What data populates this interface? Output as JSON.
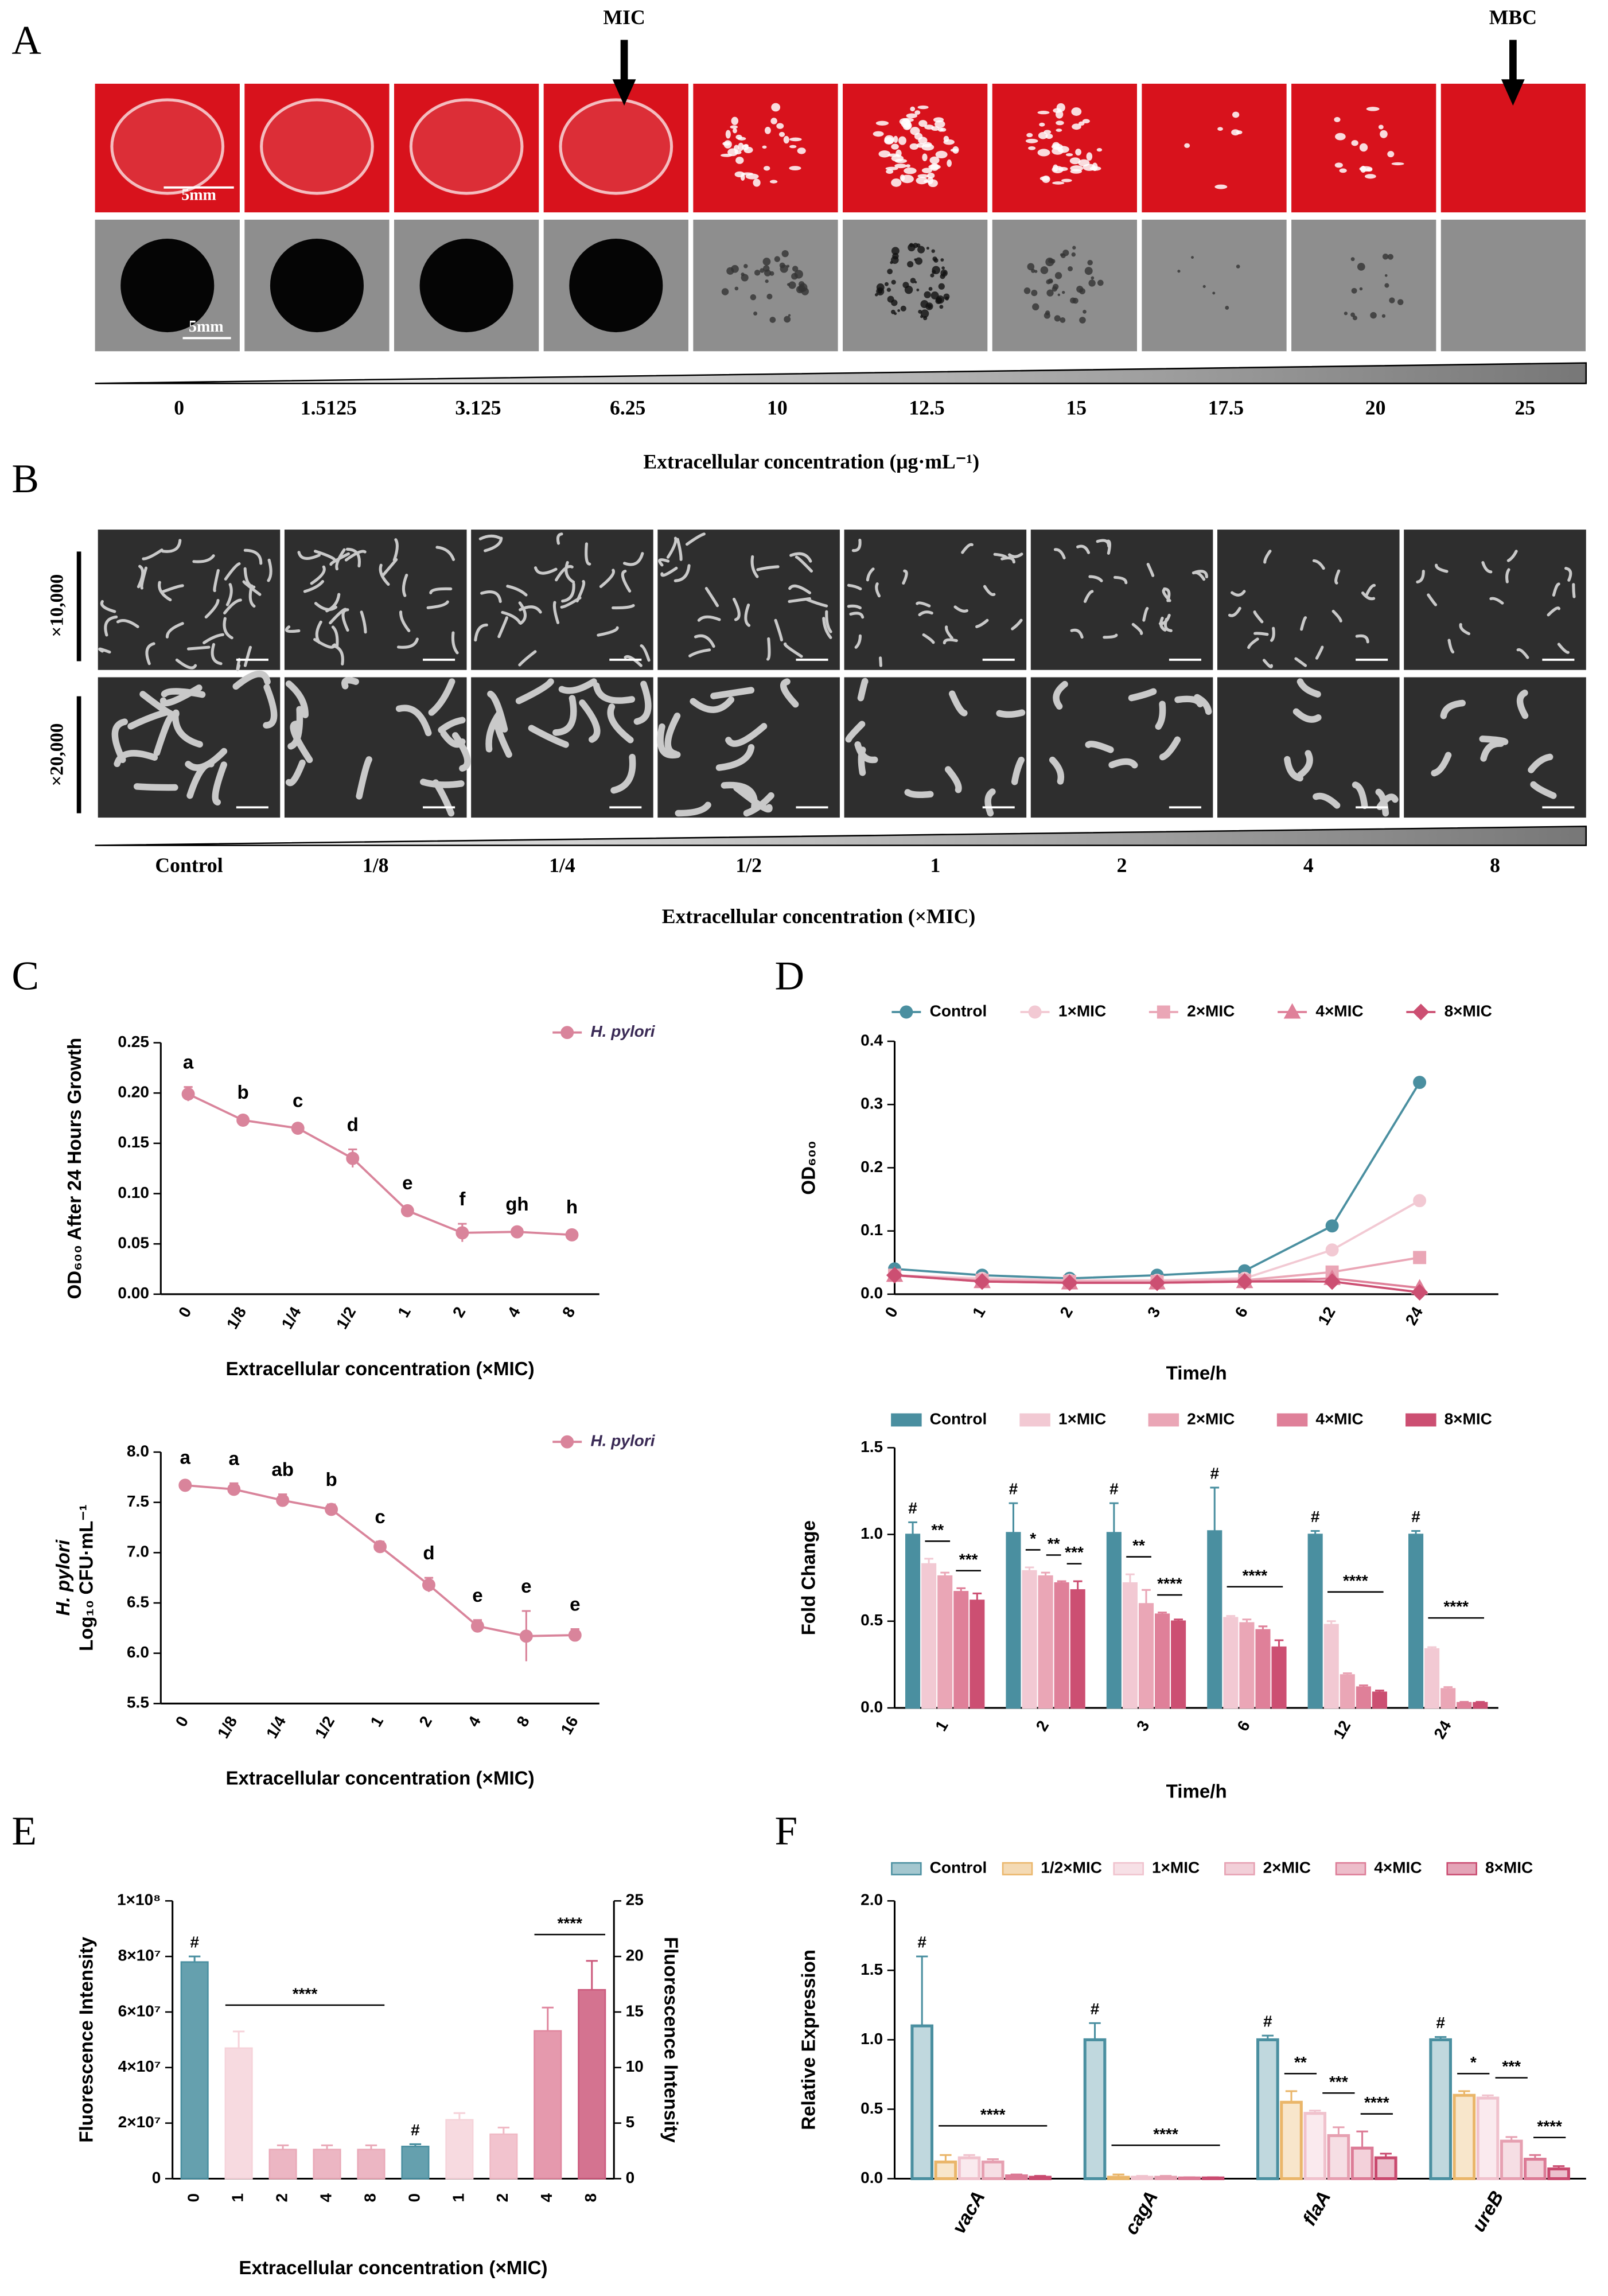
{
  "panel_A": {
    "label": "A",
    "mic": "MIC",
    "mbc": "MBC",
    "scale": "5mm",
    "concentrations": [
      "0",
      "1.5125",
      "3.125",
      "6.25",
      "10",
      "12.5",
      "15",
      "17.5",
      "20",
      "25"
    ],
    "xlabel": "Extracellular concentration (μg·mL⁻¹)"
  },
  "panel_B": {
    "label": "B",
    "magnifications": [
      "×10,000",
      "×20,000"
    ],
    "concentrations": [
      "Control",
      "1/8",
      "1/4",
      "1/2",
      "1",
      "2",
      "4",
      "8"
    ],
    "xlabel": "Extracellular concentration (×MIC)"
  },
  "panel_labels": [
    "C",
    "D",
    "E",
    "F"
  ],
  "chart_data": [
    {
      "type": "line",
      "xlabel": "Extracellular concentration (×MIC)",
      "ylabel": [
        "OD₆₀₀ After 24 Hours Growth"
      ],
      "categories": [
        "0",
        "1/8",
        "1/4",
        "1/2",
        "1",
        "2",
        "4",
        "8"
      ],
      "ylim": [
        0,
        0.25
      ],
      "yticks": [
        {
          "value": 0,
          "label": "0.00"
        },
        0.05,
        {
          "value": 0.1,
          "label": "0.10"
        },
        0.15,
        {
          "value": 0.2,
          "label": "0.20"
        },
        0.25
      ],
      "series": [
        {
          "name": "H. pylori",
          "color": "#d9849b",
          "marker": "circle",
          "values": [
            0.199,
            0.173,
            0.165,
            0.135,
            0.083,
            0.061,
            0.062,
            0.059
          ],
          "errors": [
            0.007,
            0.003,
            0.003,
            0.009,
            0.003,
            0.009,
            0.003,
            0.003
          ],
          "significance": [
            "a",
            "b",
            "c",
            "d",
            "e",
            "f",
            "gh",
            "h"
          ]
        }
      ]
    },
    {
      "type": "line",
      "xlabel": "Extracellular concentration (×MIC)",
      "ylabel": [
        "H. pylori",
        "Log₁₀ CFU·mL⁻¹"
      ],
      "categories": [
        "0",
        "1/8",
        "1/4",
        "1/2",
        "1",
        "2",
        "4",
        "8",
        "16"
      ],
      "ylim": [
        5.5,
        8.0
      ],
      "yticks": [
        5.5,
        {
          "value": 6,
          "label": "6.0"
        },
        6.5,
        {
          "value": 7,
          "label": "7.0"
        },
        7.5,
        {
          "value": 8,
          "label": "8.0"
        }
      ],
      "series": [
        {
          "name": "H. pylori",
          "color": "#d9849b",
          "marker": "circle",
          "values": [
            7.67,
            7.63,
            7.52,
            7.43,
            7.06,
            6.68,
            6.27,
            6.17,
            6.18
          ],
          "errors": [
            0.03,
            0.06,
            0.06,
            0.05,
            0.05,
            0.07,
            0.06,
            0.25,
            0.06
          ],
          "significance": [
            "a",
            "a",
            "ab",
            "b",
            "c",
            "d",
            "e",
            "e",
            "e"
          ]
        }
      ]
    },
    {
      "type": "line",
      "xlabel": "Time/h",
      "ylabel": [
        "OD₆₀₀"
      ],
      "categories": [
        "0",
        "1",
        "2",
        "3",
        "6",
        "12",
        "24"
      ],
      "ylim": [
        0,
        0.4
      ],
      "yticks": [
        {
          "value": 0,
          "label": "0.0"
        },
        0.1,
        0.2,
        0.3,
        0.4
      ],
      "series": [
        {
          "name": "Control",
          "color": "#4a8fa0",
          "marker": "circle",
          "values": [
            0.04,
            0.03,
            0.025,
            0.03,
            0.037,
            0.108,
            0.335
          ]
        },
        {
          "name": "1×MIC",
          "color": "#f2c9d3",
          "marker": "circle",
          "values": [
            0.03,
            0.025,
            0.022,
            0.022,
            0.025,
            0.07,
            0.148
          ]
        },
        {
          "name": "2×MIC",
          "color": "#eaa6b6",
          "marker": "square",
          "values": [
            0.03,
            0.022,
            0.02,
            0.02,
            0.022,
            0.035,
            0.058
          ]
        },
        {
          "name": "4×MIC",
          "color": "#df8099",
          "marker": "triangle",
          "values": [
            0.03,
            0.02,
            0.018,
            0.018,
            0.02,
            0.025,
            0.01
          ]
        },
        {
          "name": "8×MIC",
          "color": "#cc4f72",
          "marker": "diamond",
          "values": [
            0.03,
            0.02,
            0.018,
            0.018,
            0.02,
            0.02,
            0.003
          ]
        }
      ]
    },
    {
      "type": "bar",
      "xlabel": "Time/h",
      "ylabel": [
        "Fold Change"
      ],
      "categories": [
        "1",
        "2",
        "3",
        "6",
        "12",
        "24"
      ],
      "ylim": [
        0,
        1.5
      ],
      "yticks": [
        {
          "value": 0,
          "label": "0.0"
        },
        0.5,
        {
          "value": 1,
          "label": "1.0"
        },
        1.5
      ],
      "series": [
        {
          "name": "Control",
          "color": "#4a8fa0",
          "values": [
            1.0,
            1.01,
            1.01,
            1.02,
            1.0,
            1.0
          ],
          "errors": [
            0.07,
            0.17,
            0.17,
            0.25,
            0.02,
            0.02
          ]
        },
        {
          "name": "1×MIC",
          "color": "#f2c9d3",
          "values": [
            0.83,
            0.79,
            0.72,
            0.52,
            0.48,
            0.34
          ],
          "errors": [
            0.03,
            0.02,
            0.05,
            0.01,
            0.02,
            0.01
          ]
        },
        {
          "name": "2×MIC",
          "color": "#eaa6b6",
          "values": [
            0.76,
            0.76,
            0.6,
            0.49,
            0.19,
            0.11
          ],
          "errors": [
            0.02,
            0.02,
            0.08,
            0.02,
            0.01,
            0.01
          ]
        },
        {
          "name": "4×MIC",
          "color": "#df8099",
          "values": [
            0.67,
            0.72,
            0.54,
            0.45,
            0.12,
            0.03
          ],
          "errors": [
            0.02,
            0.01,
            0.01,
            0.02,
            0.01,
            0.005
          ]
        },
        {
          "name": "8×MIC",
          "color": "#cc4f72",
          "values": [
            0.62,
            0.68,
            0.5,
            0.35,
            0.09,
            0.03
          ],
          "errors": [
            0.04,
            0.05,
            0.01,
            0.04,
            0.01,
            0.005
          ]
        }
      ],
      "control_marks": [
        "#",
        "#",
        "#",
        "#",
        "#",
        "#"
      ],
      "group_marks": [
        [
          "**",
          "***"
        ],
        [
          "*",
          "**",
          "***"
        ],
        [
          "**",
          "****"
        ],
        [
          "****"
        ],
        [
          "****"
        ],
        [
          "****"
        ]
      ]
    },
    {
      "type": "bar",
      "xlabel": "Extracellular concentration (×MIC)",
      "ylabel": [
        "Fluorescence Intensity"
      ],
      "y2label": "Fluorescence Intensity",
      "categories": [
        "0",
        "1",
        "2",
        "4",
        "8",
        "0",
        "1",
        "2",
        "4",
        "8"
      ],
      "ylim": [
        0,
        100000000
      ],
      "yticks": [
        0,
        {
          "value": 20000000,
          "label": "2×10⁷"
        },
        {
          "value": 40000000,
          "label": "4×10⁷"
        },
        {
          "value": 60000000,
          "label": "6×10⁷"
        },
        {
          "value": 80000000,
          "label": "8×10⁷"
        },
        {
          "value": 100000000,
          "label": "1×10⁸"
        }
      ],
      "y2lim": [
        0,
        25
      ],
      "y2ticks": [
        0,
        5,
        10,
        15,
        20,
        25
      ],
      "series": [
        {
          "colors": [
            "#4a8fa0",
            "#f6d3da",
            "#e9a9b8",
            "#e9a9b8",
            "#e9a9b8",
            null,
            null,
            null,
            null,
            null
          ],
          "values": [
            78000000,
            47000000,
            10500000,
            10500000,
            10500000,
            null,
            null,
            null,
            null,
            null
          ],
          "errors": [
            2000000,
            6000000,
            1500000,
            1500000,
            1500000,
            null,
            null,
            null,
            null,
            null
          ]
        },
        {
          "axis": "y2",
          "colors": [
            null,
            null,
            null,
            null,
            null,
            "#4a8fa0",
            "#f6d3da",
            "#f0b9c5",
            "#e0879f",
            "#cc5a7d"
          ],
          "values": [
            null,
            null,
            null,
            null,
            null,
            2.9,
            5.3,
            4.0,
            13.3,
            17.0
          ],
          "errors": [
            null,
            null,
            null,
            null,
            null,
            0.2,
            0.6,
            0.6,
            2.1,
            2.6
          ]
        }
      ],
      "control_marks": [
        "#",
        null,
        null,
        null,
        null,
        "#",
        null,
        null,
        null,
        null
      ],
      "group_marks": [
        "****",
        "****"
      ]
    },
    {
      "type": "bar",
      "ylabel": [
        "Relative Expression"
      ],
      "outline": true,
      "categories": [
        "vacA",
        "cagA",
        "flaA",
        "ureB"
      ],
      "ylim": [
        0,
        2.0
      ],
      "yticks": [
        {
          "value": 0,
          "label": "0.0"
        },
        0.5,
        {
          "value": 1,
          "label": "1.0"
        },
        1.5,
        {
          "value": 2,
          "label": "2.0"
        }
      ],
      "series": [
        {
          "name": "Control",
          "color": "#4a8fa0",
          "values": [
            1.1,
            1.0,
            1.0,
            1.0
          ],
          "errors": [
            0.5,
            0.12,
            0.03,
            0.02
          ]
        },
        {
          "name": "1/2×MIC",
          "color": "#eab66a",
          "values": [
            0.12,
            0.01,
            0.55,
            0.6
          ],
          "errors": [
            0.05,
            0.02,
            0.08,
            0.03
          ]
        },
        {
          "name": "1×MIC",
          "color": "#f0c2cd",
          "values": [
            0.15,
            0.01,
            0.47,
            0.58
          ],
          "errors": [
            0.02,
            0.01,
            0.02,
            0.02
          ]
        },
        {
          "name": "2×MIC",
          "color": "#e6a0b1",
          "values": [
            0.12,
            0.01,
            0.31,
            0.27
          ],
          "errors": [
            0.02,
            0.01,
            0.06,
            0.03
          ]
        },
        {
          "name": "4×MIC",
          "color": "#dc7b96",
          "values": [
            0.02,
            0.005,
            0.22,
            0.14
          ],
          "errors": [
            0.01,
            0.005,
            0.12,
            0.03
          ]
        },
        {
          "name": "8×MIC",
          "color": "#c94a6f",
          "values": [
            0.01,
            0.005,
            0.15,
            0.07
          ],
          "errors": [
            0.01,
            0.005,
            0.03,
            0.02
          ]
        }
      ],
      "control_marks": [
        "#",
        "#",
        "#",
        "#"
      ],
      "group_marks": [
        [
          "****"
        ],
        [
          "****"
        ],
        [
          "**",
          "***",
          "****"
        ],
        [
          "*",
          "***",
          "****"
        ]
      ]
    }
  ]
}
